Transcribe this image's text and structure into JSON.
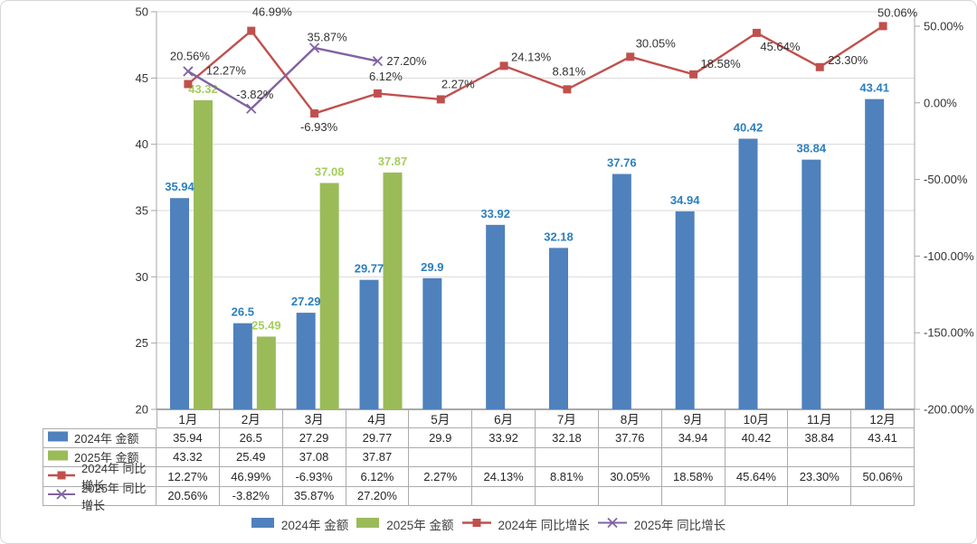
{
  "chart_data": {
    "type": "combo-bar-line",
    "title": "",
    "categories": [
      "1月",
      "2月",
      "3月",
      "4月",
      "5月",
      "6月",
      "7月",
      "8月",
      "9月",
      "10月",
      "11月",
      "12月"
    ],
    "left_axis": {
      "min": 20,
      "max": 50,
      "step": 5,
      "tick_values": [
        20,
        25,
        30,
        35,
        40,
        45,
        50
      ],
      "tick_labels": [
        "20",
        "25",
        "30",
        "35",
        "40",
        "45",
        "50"
      ]
    },
    "right_axis": {
      "min": -200,
      "max": 50,
      "step": 50,
      "tick_values": [
        50,
        0,
        -50,
        -100,
        -150,
        -200
      ],
      "tick_labels": [
        "50.00%",
        "0.00%",
        "-50.00%",
        "-100.00%",
        "-150.00%",
        "-200.00%"
      ]
    },
    "grid": true,
    "legend_position": "bottom",
    "series": [
      {
        "name": "2024年 金额",
        "type": "bar",
        "axis": "left",
        "color": "#4F81BD",
        "label_color": "#2B7FBF",
        "values": [
          35.94,
          26.5,
          27.29,
          29.77,
          29.9,
          33.92,
          32.18,
          37.76,
          34.94,
          40.42,
          38.84,
          43.41
        ],
        "labels": [
          "35.94",
          "26.5",
          "27.29",
          "29.77",
          "29.9",
          "33.92",
          "32.18",
          "37.76",
          "34.94",
          "40.42",
          "38.84",
          "43.41"
        ]
      },
      {
        "name": "2025年 金额",
        "type": "bar",
        "axis": "left",
        "color": "#9BBB59",
        "label_color": "#A4CE5B",
        "values": [
          43.32,
          25.49,
          37.08,
          37.87,
          null,
          null,
          null,
          null,
          null,
          null,
          null,
          null
        ],
        "labels": [
          "43.32",
          "25.49",
          "37.08",
          "37.87",
          "",
          "",
          "",
          "",
          "",
          "",
          "",
          ""
        ]
      },
      {
        "name": "2024年 同比增长",
        "type": "line",
        "marker": "square",
        "axis": "right",
        "color": "#C0504D",
        "label_color": "#333333",
        "values": [
          12.27,
          46.99,
          -6.93,
          6.12,
          2.27,
          24.13,
          8.81,
          30.05,
          18.58,
          45.64,
          23.3,
          50.06
        ],
        "labels": [
          "12.27%",
          "46.99%",
          "-6.93%",
          "6.12%",
          "2.27%",
          "24.13%",
          "8.81%",
          "30.05%",
          "18.58%",
          "45.64%",
          "23.30%",
          "50.06%"
        ],
        "label_dx": [
          42,
          23,
          5,
          9,
          19,
          30,
          2,
          28,
          30,
          26,
          31,
          16
        ],
        "label_dy": [
          -15,
          -21,
          15,
          -19,
          -17,
          -10,
          -20,
          -15,
          -12,
          15,
          -8,
          -15
        ]
      },
      {
        "name": "2025年 同比增长",
        "type": "line",
        "marker": "x",
        "axis": "right",
        "color": "#8064A2",
        "label_color": "#333333",
        "values": [
          20.56,
          -3.82,
          35.87,
          27.2,
          null,
          null,
          null,
          null,
          null,
          null,
          null,
          null
        ],
        "labels": [
          "20.56%",
          "-3.82%",
          "35.87%",
          "27.20%",
          "",
          "",
          "",
          "",
          "",
          "",
          "",
          ""
        ],
        "label_dx": [
          2,
          4,
          14,
          32,
          0,
          0,
          0,
          0,
          0,
          0,
          0,
          0
        ],
        "label_dy": [
          -17,
          -16,
          -12,
          0,
          0,
          0,
          0,
          0,
          0,
          0,
          0,
          0
        ]
      }
    ]
  },
  "colors": {
    "grid": "#d9d9d9",
    "axis_line": "#a6a6a6",
    "x_axis_line": "#8c8c8c",
    "axis_text": "#333333",
    "table_border": "#ababab"
  }
}
